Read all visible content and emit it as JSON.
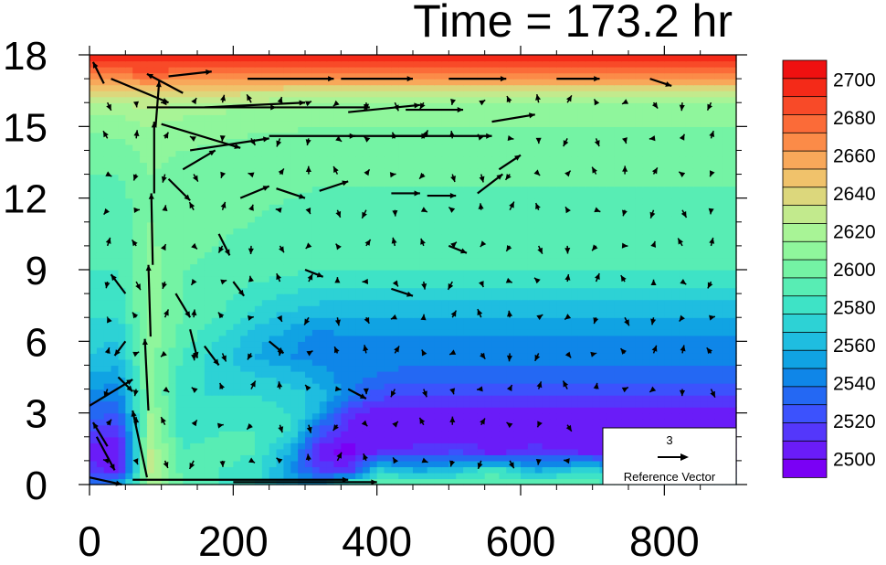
{
  "chart_data": {
    "type": "heatmap",
    "title": "Time = 173.2 hr",
    "xlabel": "",
    "ylabel": "",
    "xlim": [
      0,
      900
    ],
    "ylim": [
      0,
      18
    ],
    "x_ticks": [
      "0",
      "200",
      "400",
      "600",
      "800"
    ],
    "x_tick_values": [
      0,
      200,
      400,
      600,
      800
    ],
    "y_ticks": [
      "0",
      "3",
      "6",
      "9",
      "12",
      "15",
      "18"
    ],
    "y_tick_values": [
      0,
      3,
      6,
      9,
      12,
      15,
      18
    ],
    "colorbar": {
      "labels": [
        "2500",
        "2520",
        "2540",
        "2560",
        "2580",
        "2600",
        "2620",
        "2640",
        "2660",
        "2680",
        "2700"
      ],
      "levels": [
        2490,
        2500,
        2510,
        2520,
        2530,
        2540,
        2550,
        2560,
        2570,
        2580,
        2590,
        2600,
        2610,
        2620,
        2630,
        2640,
        2650,
        2660,
        2670,
        2680,
        2690,
        2700,
        2710
      ],
      "colors": [
        "#7a00f5",
        "#6a1cf8",
        "#5437fb",
        "#3c52fd",
        "#2468f3",
        "#0f86e8",
        "#10a3e3",
        "#1fbde0",
        "#2dd2d5",
        "#3ee3c6",
        "#58edb4",
        "#74f3a4",
        "#8ff69c",
        "#a8f496",
        "#c2ea8d",
        "#dcd77c",
        "#f0c26b",
        "#f8a85a",
        "#fb8b48",
        "#fb6b38",
        "#f84a28",
        "#f42a18",
        "#ef1010"
      ]
    },
    "field_rows": [
      {
        "z": 0.0,
        "values": [
          2535,
          2555,
          2625,
          2600,
          2590,
          2580,
          2565,
          2560,
          2600,
          2600,
          2600,
          2600,
          2600,
          2600,
          2600,
          2560,
          2560
        ]
      },
      {
        "z": 0.6,
        "values": [
          2515,
          2505,
          2630,
          2595,
          2590,
          2585,
          2550,
          2520,
          2512,
          2575,
          2560,
          2570,
          2590,
          2560,
          2580,
          2525,
          2520
        ]
      },
      {
        "z": 1.4,
        "values": [
          2505,
          2500,
          2630,
          2590,
          2595,
          2590,
          2560,
          2505,
          2495,
          2510,
          2515,
          2520,
          2505,
          2515,
          2505,
          2500,
          2500
        ]
      },
      {
        "z": 2.2,
        "values": [
          2520,
          2510,
          2625,
          2585,
          2590,
          2590,
          2580,
          2525,
          2505,
          2500,
          2500,
          2500,
          2500,
          2500,
          2500,
          2500,
          2500
        ]
      },
      {
        "z": 3.0,
        "values": [
          2535,
          2530,
          2620,
          2580,
          2585,
          2585,
          2580,
          2560,
          2515,
          2505,
          2505,
          2505,
          2505,
          2505,
          2505,
          2505,
          2505
        ]
      },
      {
        "z": 3.8,
        "values": [
          2545,
          2545,
          2615,
          2580,
          2580,
          2580,
          2575,
          2565,
          2545,
          2525,
          2520,
          2520,
          2520,
          2520,
          2520,
          2520,
          2520
        ]
      },
      {
        "z": 4.6,
        "values": [
          2560,
          2555,
          2615,
          2585,
          2575,
          2570,
          2565,
          2555,
          2545,
          2540,
          2535,
          2535,
          2535,
          2535,
          2535,
          2535,
          2535
        ]
      },
      {
        "z": 5.4,
        "values": [
          2570,
          2565,
          2615,
          2590,
          2575,
          2560,
          2550,
          2545,
          2545,
          2545,
          2545,
          2545,
          2545,
          2545,
          2545,
          2545,
          2545
        ]
      },
      {
        "z": 6.2,
        "values": [
          2575,
          2570,
          2615,
          2595,
          2580,
          2565,
          2555,
          2545,
          2550,
          2550,
          2550,
          2550,
          2550,
          2550,
          2550,
          2550,
          2550
        ]
      },
      {
        "z": 7.0,
        "values": [
          2580,
          2580,
          2615,
          2600,
          2590,
          2575,
          2565,
          2560,
          2560,
          2560,
          2560,
          2560,
          2560,
          2560,
          2560,
          2560,
          2560
        ]
      },
      {
        "z": 8.0,
        "values": [
          2585,
          2585,
          2615,
          2600,
          2595,
          2585,
          2580,
          2575,
          2575,
          2575,
          2575,
          2575,
          2575,
          2575,
          2575,
          2575,
          2575
        ]
      },
      {
        "z": 9.0,
        "values": [
          2590,
          2590,
          2615,
          2600,
          2598,
          2595,
          2592,
          2590,
          2590,
          2590,
          2590,
          2590,
          2590,
          2590,
          2590,
          2590,
          2590
        ]
      },
      {
        "z": 10.0,
        "values": [
          2592,
          2592,
          2612,
          2602,
          2600,
          2598,
          2596,
          2595,
          2595,
          2595,
          2595,
          2595,
          2595,
          2595,
          2595,
          2595,
          2595
        ]
      },
      {
        "z": 11.0,
        "values": [
          2594,
          2594,
          2610,
          2603,
          2601,
          2600,
          2598,
          2597,
          2597,
          2597,
          2597,
          2597,
          2597,
          2597,
          2597,
          2597,
          2597
        ]
      },
      {
        "z": 12.0,
        "values": [
          2596,
          2596,
          2608,
          2604,
          2602,
          2601,
          2600,
          2599,
          2599,
          2599,
          2599,
          2599,
          2599,
          2599,
          2599,
          2599,
          2599
        ]
      },
      {
        "z": 13.0,
        "values": [
          2600,
          2600,
          2610,
          2606,
          2604,
          2603,
          2602,
          2601,
          2601,
          2601,
          2601,
          2601,
          2601,
          2601,
          2601,
          2601,
          2601
        ]
      },
      {
        "z": 14.0,
        "values": [
          2605,
          2606,
          2613,
          2610,
          2608,
          2606,
          2605,
          2604,
          2604,
          2604,
          2604,
          2604,
          2604,
          2604,
          2604,
          2604,
          2604
        ]
      },
      {
        "z": 15.0,
        "values": [
          2612,
          2614,
          2620,
          2616,
          2614,
          2612,
          2611,
          2610,
          2610,
          2610,
          2610,
          2610,
          2610,
          2610,
          2610,
          2610,
          2610
        ]
      },
      {
        "z": 15.8,
        "values": [
          2625,
          2625,
          2630,
          2625,
          2622,
          2620,
          2618,
          2617,
          2617,
          2617,
          2617,
          2617,
          2617,
          2617,
          2617,
          2617,
          2617
        ]
      },
      {
        "z": 16.4,
        "values": [
          2645,
          2645,
          2648,
          2645,
          2642,
          2640,
          2638,
          2636,
          2636,
          2636,
          2636,
          2636,
          2636,
          2636,
          2636,
          2636,
          2636
        ]
      },
      {
        "z": 16.9,
        "values": [
          2670,
          2670,
          2672,
          2670,
          2668,
          2666,
          2664,
          2662,
          2662,
          2662,
          2662,
          2662,
          2662,
          2662,
          2662,
          2662,
          2662
        ]
      },
      {
        "z": 17.4,
        "values": [
          2690,
          2690,
          2692,
          2690,
          2688,
          2686,
          2685,
          2684,
          2684,
          2684,
          2684,
          2684,
          2684,
          2684,
          2684,
          2684,
          2684
        ]
      },
      {
        "z": 18.0,
        "values": [
          2708,
          2708,
          2708,
          2708,
          2708,
          2708,
          2708,
          2708,
          2708,
          2708,
          2708,
          2708,
          2708,
          2708,
          2708,
          2708,
          2708
        ]
      }
    ],
    "field_x": [
      0,
      40,
      85,
      130,
      180,
      230,
      280,
      320,
      360,
      400,
      460,
      520,
      560,
      620,
      700,
      800,
      900
    ],
    "vectors": [
      {
        "x": 0,
        "y": 3.3,
        "u": 60,
        "v": 1.1
      },
      {
        "x": 10,
        "y": 2.0,
        "u": 25,
        "v": -1.4
      },
      {
        "x": 0,
        "y": 0.3,
        "u": 45,
        "v": -0.3
      },
      {
        "x": 60,
        "y": 0.2,
        "u": 300,
        "v": 0.0
      },
      {
        "x": 200,
        "y": 0.1,
        "u": 200,
        "v": 0.0
      },
      {
        "x": 80,
        "y": 0.3,
        "u": -20,
        "v": 2.8
      },
      {
        "x": 82,
        "y": 3.1,
        "u": -5,
        "v": 3.0
      },
      {
        "x": 85,
        "y": 6.2,
        "u": -3,
        "v": 3.0
      },
      {
        "x": 88,
        "y": 9.2,
        "u": -2,
        "v": 3.0
      },
      {
        "x": 90,
        "y": 12.2,
        "u": 0,
        "v": 3.0
      },
      {
        "x": 92,
        "y": 15.0,
        "u": 5,
        "v": 1.9
      },
      {
        "x": 130,
        "y": 16.4,
        "u": -50,
        "v": 0.8
      },
      {
        "x": 20,
        "y": 16.8,
        "u": -15,
        "v": 0.9
      },
      {
        "x": 30,
        "y": 17.0,
        "u": 80,
        "v": -1.0
      },
      {
        "x": 80,
        "y": 15.8,
        "u": 180,
        "v": 0.0
      },
      {
        "x": 160,
        "y": 15.8,
        "u": 140,
        "v": 0.2
      },
      {
        "x": 260,
        "y": 15.8,
        "u": 130,
        "v": 0.0
      },
      {
        "x": 360,
        "y": 15.6,
        "u": 100,
        "v": 0.3
      },
      {
        "x": 440,
        "y": 15.7,
        "u": 80,
        "v": 0.0
      },
      {
        "x": 100,
        "y": 15.1,
        "u": 110,
        "v": -1.0
      },
      {
        "x": 140,
        "y": 14.0,
        "u": 110,
        "v": 0.5
      },
      {
        "x": 250,
        "y": 14.6,
        "u": 120,
        "v": 0.0
      },
      {
        "x": 360,
        "y": 14.6,
        "u": 110,
        "v": 0.0
      },
      {
        "x": 420,
        "y": 14.6,
        "u": 140,
        "v": 0.0
      },
      {
        "x": 560,
        "y": 15.2,
        "u": 60,
        "v": 0.3
      },
      {
        "x": 130,
        "y": 13.2,
        "u": 45,
        "v": 0.8
      },
      {
        "x": 110,
        "y": 12.8,
        "u": 30,
        "v": -0.9
      },
      {
        "x": 210,
        "y": 12.0,
        "u": 40,
        "v": 0.5
      },
      {
        "x": 260,
        "y": 12.4,
        "u": 40,
        "v": -0.4
      },
      {
        "x": 320,
        "y": 12.3,
        "u": 40,
        "v": 0.4
      },
      {
        "x": 420,
        "y": 12.2,
        "u": 40,
        "v": 0.0
      },
      {
        "x": 470,
        "y": 12.1,
        "u": 40,
        "v": 0.0
      },
      {
        "x": 540,
        "y": 12.2,
        "u": 35,
        "v": 0.8
      },
      {
        "x": 570,
        "y": 13.2,
        "u": 30,
        "v": 0.6
      },
      {
        "x": 110,
        "y": 17.1,
        "u": 60,
        "v": 0.2
      },
      {
        "x": 220,
        "y": 17.0,
        "u": 120,
        "v": 0.0
      },
      {
        "x": 350,
        "y": 17.0,
        "u": 100,
        "v": 0.0
      },
      {
        "x": 500,
        "y": 17.0,
        "u": 80,
        "v": 0.0
      },
      {
        "x": 650,
        "y": 17.0,
        "u": 60,
        "v": 0.0
      },
      {
        "x": 780,
        "y": 17.0,
        "u": 30,
        "v": -0.3
      },
      {
        "x": 50,
        "y": 8.0,
        "u": -20,
        "v": 0.8
      },
      {
        "x": 50,
        "y": 6.0,
        "u": -15,
        "v": -0.6
      },
      {
        "x": 40,
        "y": 4.5,
        "u": 20,
        "v": -0.6
      },
      {
        "x": 25,
        "y": 1.6,
        "u": -20,
        "v": 1.0
      },
      {
        "x": 120,
        "y": 8.0,
        "u": 20,
        "v": -1.0
      },
      {
        "x": 140,
        "y": 6.5,
        "u": 10,
        "v": -1.2
      },
      {
        "x": 180,
        "y": 10.5,
        "u": 15,
        "v": -0.9
      },
      {
        "x": 160,
        "y": 5.8,
        "u": 20,
        "v": -0.8
      },
      {
        "x": 200,
        "y": 8.5,
        "u": 15,
        "v": -0.6
      },
      {
        "x": 250,
        "y": 6.0,
        "u": 20,
        "v": -0.5
      },
      {
        "x": 300,
        "y": 9.0,
        "u": 25,
        "v": -0.3
      },
      {
        "x": 360,
        "y": 4.0,
        "u": 25,
        "v": -0.4
      },
      {
        "x": 420,
        "y": 8.2,
        "u": 30,
        "v": -0.3
      },
      {
        "x": 500,
        "y": 10.0,
        "u": 25,
        "v": -0.3
      }
    ],
    "reference_vector": {
      "magnitude": "3",
      "label": "Reference Vector"
    }
  }
}
